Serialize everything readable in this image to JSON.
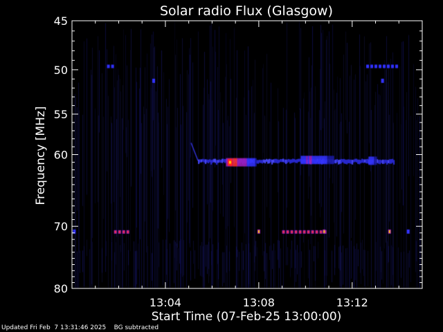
{
  "chart_data": {
    "type": "heatmap",
    "title": "Solar radio Flux (Glasgow)",
    "xlabel": "Start Time (07-Feb-25 13:00:00)",
    "ylabel": "Frequency [MHz]",
    "x_range_minutes": [
      0,
      15
    ],
    "x_ticks": [
      {
        "minute": 4,
        "label": "13:04"
      },
      {
        "minute": 8,
        "label": "13:08"
      },
      {
        "minute": 12,
        "label": "13:12"
      }
    ],
    "y_scale": "log",
    "y_range_mhz": [
      45,
      80
    ],
    "y_ticks": [
      {
        "mhz": 45,
        "label": "45"
      },
      {
        "mhz": 50,
        "label": "50"
      },
      {
        "mhz": 55,
        "label": "55"
      },
      {
        "mhz": 60,
        "label": "60"
      },
      {
        "mhz": 70,
        "label": "70"
      },
      {
        "mhz": 80,
        "label": "80"
      }
    ],
    "grid": false,
    "colormap": [
      "#000000",
      "#1a1aa0",
      "#3333ff",
      "#a020c0",
      "#ff3030",
      "#ffd000"
    ],
    "features": [
      {
        "kind": "sweep",
        "start_minute": 5.1,
        "end_minute": 5.4,
        "start_mhz": 58.5,
        "end_mhz": 60.8,
        "intensity": 0.5
      },
      {
        "kind": "band",
        "start_minute": 5.4,
        "end_minute": 13.8,
        "mhz": 60.8,
        "intensity": 0.45
      },
      {
        "kind": "burst",
        "start_minute": 6.6,
        "end_minute": 7.9,
        "mhz": 61.0,
        "intensity": 0.9
      },
      {
        "kind": "burst",
        "start_minute": 12.7,
        "end_minute": 13.0,
        "mhz": 60.8,
        "intensity": 0.6
      },
      {
        "kind": "burst",
        "start_minute": 9.8,
        "end_minute": 11.2,
        "mhz": 60.7,
        "intensity": 0.6
      },
      {
        "kind": "dashes",
        "start_minute": 1.5,
        "end_minute": 1.8,
        "mhz": 49.6,
        "intensity": 0.5
      },
      {
        "kind": "dashes",
        "start_minute": 12.6,
        "end_minute": 13.9,
        "mhz": 49.6,
        "intensity": 0.5
      },
      {
        "kind": "dot",
        "minute": 3.5,
        "mhz": 51.2,
        "intensity": 0.6
      },
      {
        "kind": "dot",
        "minute": 13.3,
        "mhz": 51.2,
        "intensity": 0.6
      },
      {
        "kind": "dashes",
        "start_minute": 1.8,
        "end_minute": 2.4,
        "mhz": 70.8,
        "intensity": 0.7
      },
      {
        "kind": "dashes",
        "start_minute": 9.0,
        "end_minute": 10.8,
        "mhz": 70.8,
        "intensity": 0.7
      },
      {
        "kind": "dot",
        "minute": 0.1,
        "mhz": 70.8,
        "intensity": 0.6
      },
      {
        "kind": "dot",
        "minute": 8.0,
        "mhz": 70.8,
        "intensity": 0.95
      },
      {
        "kind": "dot",
        "minute": 10.8,
        "mhz": 70.8,
        "intensity": 0.95
      },
      {
        "kind": "dot",
        "minute": 13.6,
        "mhz": 70.8,
        "intensity": 0.95
      },
      {
        "kind": "dot",
        "minute": 14.4,
        "mhz": 70.8,
        "intensity": 0.6
      }
    ]
  },
  "footer": {
    "updated": "Updated Fri Feb  7 13:31:46 2025",
    "note": "BG subtracted"
  }
}
